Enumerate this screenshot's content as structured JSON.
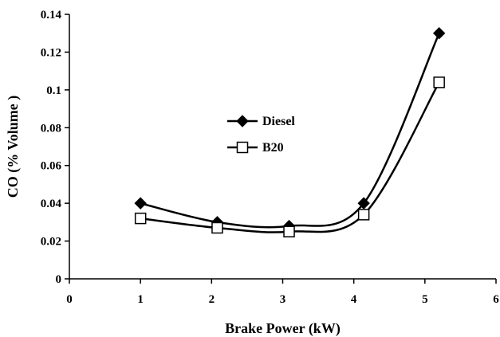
{
  "chart_data": {
    "type": "line",
    "xlabel": "Brake Power (kW)",
    "ylabel": "CO (% Volume )",
    "xlim": [
      0,
      6
    ],
    "ylim": [
      0,
      0.14
    ],
    "xticks": [
      0,
      1,
      2,
      3,
      4,
      5,
      6
    ],
    "yticks": [
      0,
      0.02,
      0.04,
      0.06,
      0.08,
      0.1,
      0.12,
      0.14
    ],
    "xtick_labels": [
      "0",
      "1",
      "2",
      "3",
      "4",
      "5",
      "6"
    ],
    "ytick_labels": [
      "0",
      "0.02",
      "0.04",
      "0.06",
      "0.08",
      "0.1",
      "0.12",
      "0.14"
    ],
    "grid": false,
    "legend_position": "center",
    "series": [
      {
        "name": "Diesel",
        "marker": "filled-diamond",
        "color": "#000000",
        "x": [
          1.0,
          2.08,
          3.09,
          4.14,
          5.2
        ],
        "y": [
          0.04,
          0.03,
          0.028,
          0.04,
          0.13
        ]
      },
      {
        "name": "B20",
        "marker": "open-square",
        "color": "#000000",
        "x": [
          1.0,
          2.08,
          3.09,
          4.14,
          5.2
        ],
        "y": [
          0.032,
          0.027,
          0.025,
          0.034,
          0.104
        ]
      }
    ]
  }
}
